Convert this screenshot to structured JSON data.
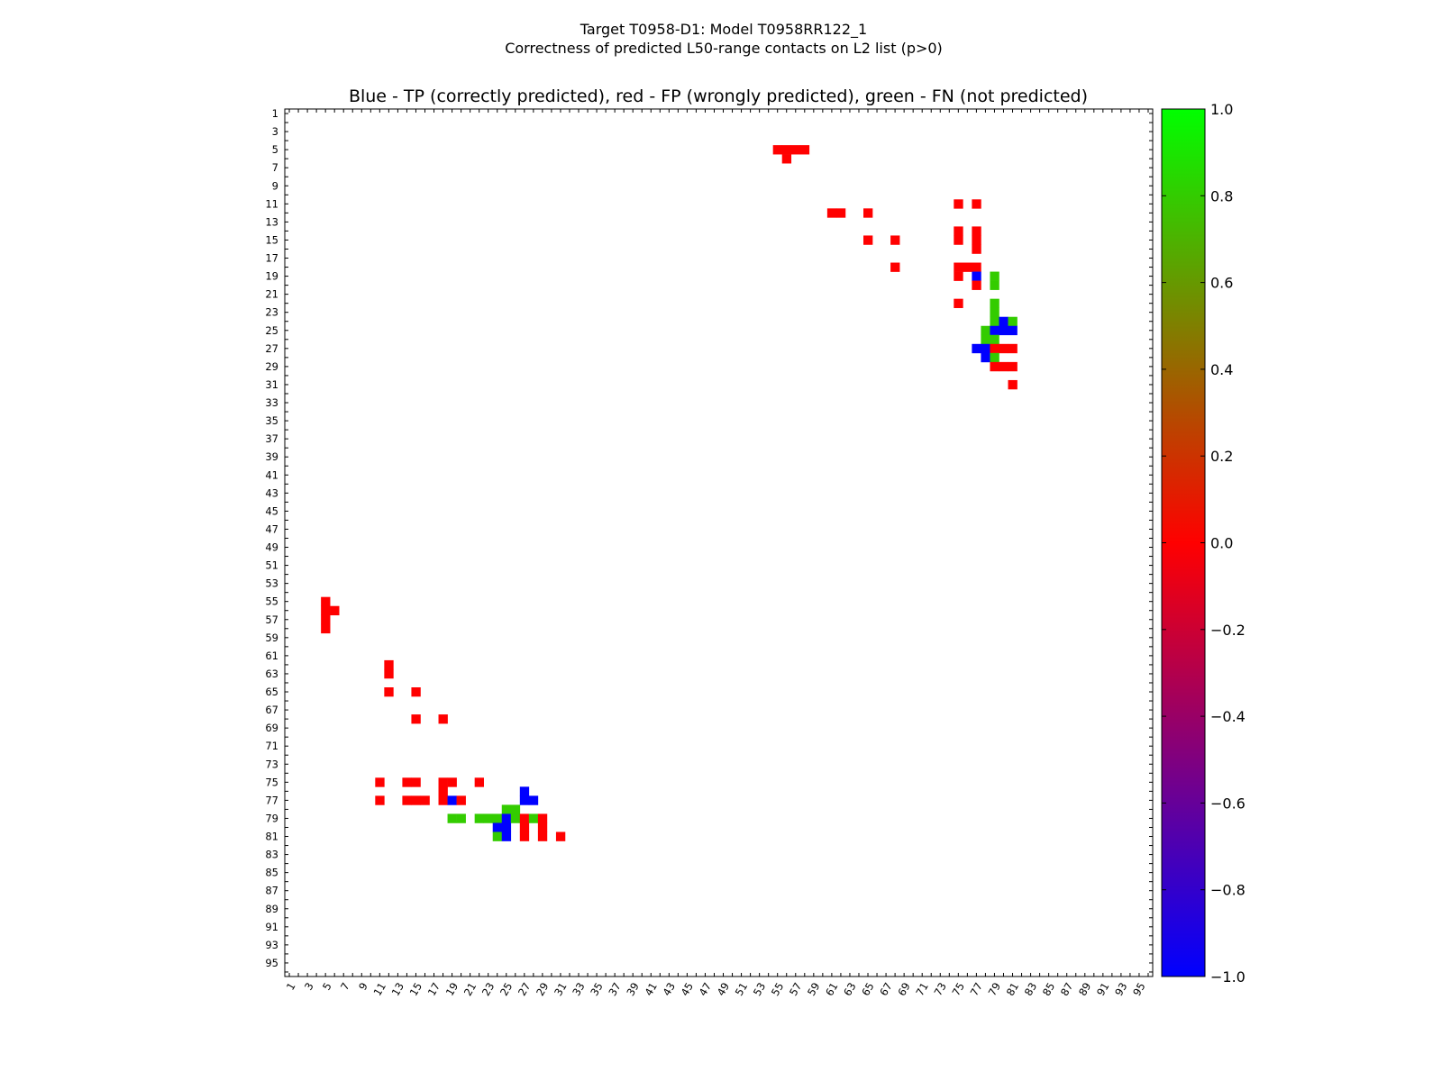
{
  "figure": {
    "title_line1": "Target T0958-D1: Model T0958RR122_1",
    "title_line2": "Correctness of predicted L50-range contacts on L2 list (p>0)"
  },
  "chart_data": {
    "type": "heatmap",
    "title": "Blue - TP (correctly predicted), red - FP (wrongly predicted), green - FN (not predicted)",
    "xlabel": "",
    "ylabel": "",
    "xlim": [
      1,
      96
    ],
    "ylim": [
      1,
      96
    ],
    "x_tick_labels": [
      "1",
      "3",
      "5",
      "7",
      "9",
      "11",
      "13",
      "15",
      "17",
      "19",
      "21",
      "23",
      "25",
      "27",
      "29",
      "31",
      "33",
      "35",
      "37",
      "39",
      "41",
      "43",
      "45",
      "47",
      "49",
      "51",
      "53",
      "55",
      "57",
      "59",
      "61",
      "63",
      "65",
      "67",
      "69",
      "71",
      "73",
      "75",
      "77",
      "79",
      "81",
      "83",
      "85",
      "87",
      "89",
      "91",
      "93",
      "95"
    ],
    "y_tick_labels": [
      "1",
      "3",
      "5",
      "7",
      "9",
      "11",
      "13",
      "15",
      "17",
      "19",
      "21",
      "23",
      "25",
      "27",
      "29",
      "31",
      "33",
      "35",
      "37",
      "39",
      "41",
      "43",
      "45",
      "47",
      "49",
      "51",
      "53",
      "55",
      "57",
      "59",
      "61",
      "63",
      "65",
      "67",
      "69",
      "71",
      "73",
      "75",
      "77",
      "79",
      "81",
      "83",
      "85",
      "87",
      "89",
      "91",
      "93",
      "95"
    ],
    "colorbar": {
      "range": [
        -1.0,
        1.0
      ],
      "tick_values": [
        1.0,
        0.8,
        0.6,
        0.4,
        0.2,
        0.0,
        -0.2,
        -0.4,
        -0.6,
        -0.8,
        -1.0
      ],
      "tick_labels": [
        "1.0",
        "0.8",
        "0.6",
        "0.4",
        "0.2",
        "0.0",
        "−0.2",
        "−0.4",
        "−0.6",
        "−0.8",
        "−1.0"
      ]
    },
    "legend": {
      "tp_value": -1,
      "fp_value": 0,
      "fn_value": 1
    },
    "cells": [
      [
        55,
        5,
        0
      ],
      [
        56,
        5,
        0
      ],
      [
        57,
        5,
        0
      ],
      [
        58,
        5,
        0
      ],
      [
        56,
        6,
        0
      ],
      [
        75,
        11,
        0
      ],
      [
        77,
        11,
        0
      ],
      [
        61,
        12,
        0
      ],
      [
        62,
        12,
        0
      ],
      [
        65,
        12,
        0
      ],
      [
        75,
        14,
        0
      ],
      [
        77,
        14,
        0
      ],
      [
        65,
        15,
        0
      ],
      [
        68,
        15,
        0
      ],
      [
        75,
        15,
        0
      ],
      [
        77,
        15,
        0
      ],
      [
        77,
        16,
        0
      ],
      [
        68,
        18,
        0
      ],
      [
        75,
        18,
        0
      ],
      [
        76,
        18,
        0
      ],
      [
        77,
        18,
        0
      ],
      [
        75,
        19,
        0
      ],
      [
        77,
        19,
        -1
      ],
      [
        79,
        19,
        1
      ],
      [
        77,
        20,
        0
      ],
      [
        79,
        20,
        1
      ],
      [
        75,
        22,
        0
      ],
      [
        79,
        22,
        1
      ],
      [
        79,
        23,
        1
      ],
      [
        79,
        24,
        1
      ],
      [
        80,
        24,
        -1
      ],
      [
        81,
        24,
        1
      ],
      [
        78,
        25,
        1
      ],
      [
        79,
        25,
        -1
      ],
      [
        80,
        25,
        -1
      ],
      [
        81,
        25,
        -1
      ],
      [
        78,
        26,
        1
      ],
      [
        79,
        26,
        1
      ],
      [
        77,
        27,
        -1
      ],
      [
        78,
        27,
        -1
      ],
      [
        79,
        27,
        0
      ],
      [
        80,
        27,
        0
      ],
      [
        81,
        27,
        0
      ],
      [
        78,
        28,
        -1
      ],
      [
        79,
        28,
        1
      ],
      [
        79,
        29,
        0
      ],
      [
        80,
        29,
        0
      ],
      [
        81,
        29,
        0
      ],
      [
        81,
        31,
        0
      ],
      [
        5,
        55,
        0
      ],
      [
        5,
        56,
        0
      ],
      [
        6,
        56,
        0
      ],
      [
        5,
        57,
        0
      ],
      [
        5,
        58,
        0
      ],
      [
        12,
        62,
        0
      ],
      [
        12,
        63,
        0
      ],
      [
        12,
        65,
        0
      ],
      [
        15,
        65,
        0
      ],
      [
        15,
        68,
        0
      ],
      [
        18,
        68,
        0
      ],
      [
        11,
        75,
        0
      ],
      [
        14,
        75,
        0
      ],
      [
        15,
        75,
        0
      ],
      [
        18,
        75,
        0
      ],
      [
        19,
        75,
        0
      ],
      [
        22,
        75,
        0
      ],
      [
        18,
        76,
        0
      ],
      [
        27,
        76,
        -1
      ],
      [
        11,
        77,
        0
      ],
      [
        14,
        77,
        0
      ],
      [
        15,
        77,
        0
      ],
      [
        16,
        77,
        0
      ],
      [
        18,
        77,
        0
      ],
      [
        19,
        77,
        -1
      ],
      [
        20,
        77,
        0
      ],
      [
        27,
        77,
        -1
      ],
      [
        28,
        77,
        -1
      ],
      [
        25,
        78,
        1
      ],
      [
        26,
        78,
        1
      ],
      [
        19,
        79,
        1
      ],
      [
        20,
        79,
        1
      ],
      [
        22,
        79,
        1
      ],
      [
        23,
        79,
        1
      ],
      [
        24,
        79,
        1
      ],
      [
        25,
        79,
        -1
      ],
      [
        26,
        79,
        1
      ],
      [
        27,
        79,
        0
      ],
      [
        28,
        79,
        1
      ],
      [
        29,
        79,
        0
      ],
      [
        24,
        80,
        -1
      ],
      [
        25,
        80,
        -1
      ],
      [
        27,
        80,
        0
      ],
      [
        29,
        80,
        0
      ],
      [
        24,
        81,
        1
      ],
      [
        25,
        81,
        -1
      ],
      [
        27,
        81,
        0
      ],
      [
        29,
        81,
        0
      ],
      [
        31,
        81,
        0
      ]
    ]
  }
}
